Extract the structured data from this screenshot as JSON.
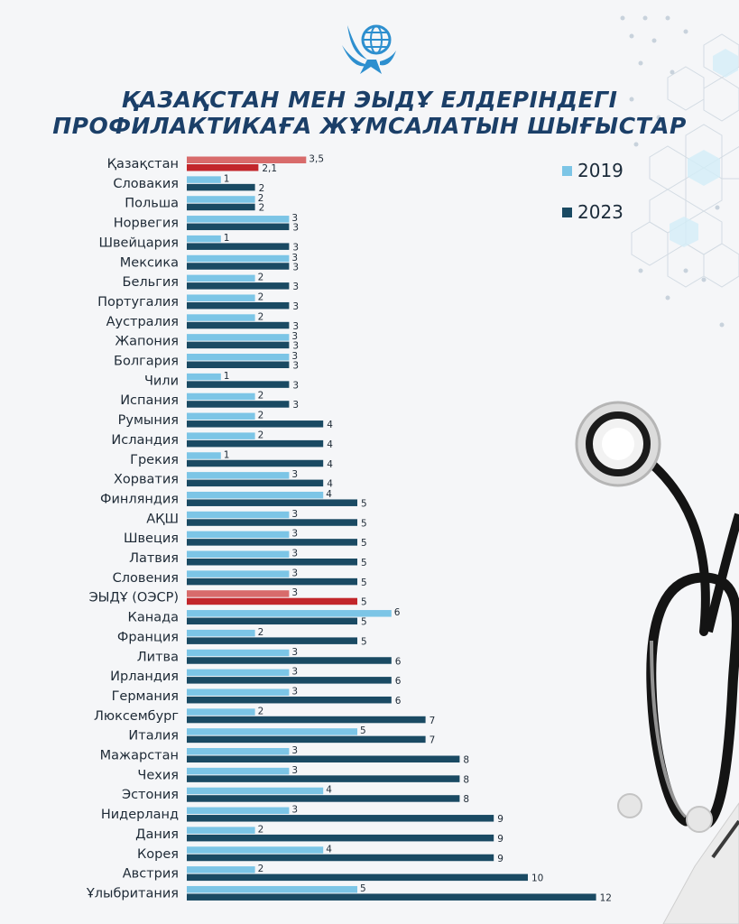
{
  "title": {
    "line1": "ҚАЗАҚСТАН МЕН ЭЫДҰ ЕЛДЕРІНДЕГІ",
    "line2": "ПРОФИЛАКТИКАҒА ЖҰМСАЛАТЫН ШЫҒЫСТАР"
  },
  "colors": {
    "series2019": "#7cc5e6",
    "series2023": "#1a4a63",
    "highlight2019": "#d86b6b",
    "highlight2023": "#c2262b",
    "title": "#1b3f68"
  },
  "legend": {
    "label2019": "2019",
    "label2023": "2023"
  },
  "chart_data": {
    "type": "bar",
    "orientation": "horizontal",
    "legend_position": "top-right",
    "grid": false,
    "categories": [
      "Қазақстан",
      "Словакия",
      "Польша",
      "Норвегия",
      "Швейцария",
      "Мексика",
      "Бельгия",
      "Португалия",
      "Аустралия",
      "Жапония",
      "Болгария",
      "Чили",
      "Испания",
      "Румыния",
      "Исландия",
      "Грекия",
      "Хорватия",
      "Финляндия",
      "АҚШ",
      "Швеция",
      "Латвия",
      "Словения",
      "ЭЫДҰ (ОЭСР)",
      "Канада",
      "Франция",
      "Литва",
      "Ирландия",
      "Германия",
      "Люксембург",
      "Италия",
      "Мажарстан",
      "Чехия",
      "Эстония",
      "Нидерланд",
      "Дания",
      "Корея",
      "Австрия",
      "Ұлыбритания"
    ],
    "highlighted": [
      "Қазақстан",
      "ЭЫДҰ (ОЭСР)"
    ],
    "series": [
      {
        "name": "2019",
        "values": [
          3.5,
          1,
          2,
          3,
          1,
          3,
          2,
          2,
          2,
          3,
          3,
          1,
          2,
          2,
          2,
          1,
          3,
          4,
          3,
          3,
          3,
          3,
          3,
          6,
          2,
          3,
          3,
          3,
          2,
          5,
          3,
          3,
          4,
          3,
          2,
          4,
          2,
          5
        ],
        "labels": [
          "3,5",
          "1",
          "2",
          "3",
          "1",
          "3",
          "2",
          "2",
          "2",
          "3",
          "3",
          "1",
          "2",
          "2",
          "2",
          "1",
          "3",
          "4",
          "3",
          "3",
          "3",
          "3",
          "3",
          "6",
          "2",
          "3",
          "3",
          "3",
          "2",
          "5",
          "3",
          "3",
          "4",
          "3",
          "2",
          "4",
          "2",
          "5"
        ]
      },
      {
        "name": "2023",
        "values": [
          2.1,
          2,
          2,
          3,
          3,
          3,
          3,
          3,
          3,
          3,
          3,
          3,
          3,
          4,
          4,
          4,
          4,
          5,
          5,
          5,
          5,
          5,
          5,
          5,
          5,
          6,
          6,
          6,
          7,
          7,
          8,
          8,
          8,
          9,
          9,
          9,
          10,
          12
        ],
        "labels": [
          "2,1",
          "2",
          "2",
          "3",
          "3",
          "3",
          "3",
          "3",
          "3",
          "3",
          "3",
          "3",
          "3",
          "4",
          "4",
          "4",
          "4",
          "5",
          "5",
          "5",
          "5",
          "5",
          "5",
          "5",
          "5",
          "6",
          "6",
          "6",
          "7",
          "7",
          "8",
          "8",
          "8",
          "9",
          "9",
          "9",
          "10",
          "12"
        ]
      }
    ]
  }
}
